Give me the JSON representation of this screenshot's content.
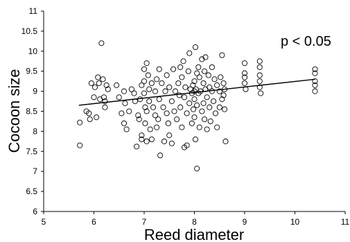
{
  "chart_data": {
    "type": "scatter",
    "title": "",
    "xlabel": "Reed diameter",
    "ylabel": "Cocoon size",
    "xlim": [
      5,
      11
    ],
    "ylim": [
      6,
      11
    ],
    "xticks": [
      5,
      6,
      7,
      8,
      9,
      10,
      11
    ],
    "yticks": [
      6,
      6.5,
      7,
      7.5,
      8,
      8.5,
      9,
      9.5,
      10,
      10.5,
      11
    ],
    "xtick_labels": [
      "5",
      "6",
      "7",
      "8",
      "9",
      "10",
      "11"
    ],
    "ytick_labels": [
      "6",
      "6.5",
      "7",
      "7.5",
      "8",
      "8.5",
      "9",
      "9.5",
      "10",
      "10.5",
      "11"
    ],
    "annotation": "p < 0.05",
    "grid": false,
    "marker": "open-circle",
    "colors": {
      "marker": "#000000",
      "line": "#000000"
    },
    "trendline": {
      "x": [
        5.7,
        10.4
      ],
      "y": [
        8.65,
        9.3
      ]
    },
    "points": [
      [
        5.72,
        8.22
      ],
      [
        5.72,
        7.65
      ],
      [
        5.85,
        8.5
      ],
      [
        5.9,
        8.45
      ],
      [
        5.92,
        8.3
      ],
      [
        5.95,
        9.2
      ],
      [
        6.0,
        8.85
      ],
      [
        6.02,
        9.1
      ],
      [
        6.05,
        8.35
      ],
      [
        6.08,
        9.35
      ],
      [
        6.1,
        9.2
      ],
      [
        6.12,
        8.8
      ],
      [
        6.15,
        10.2
      ],
      [
        6.18,
        9.3
      ],
      [
        6.2,
        8.85
      ],
      [
        6.22,
        8.6
      ],
      [
        6.25,
        9.15
      ],
      [
        6.28,
        9.05
      ],
      [
        6.22,
        8.75
      ],
      [
        6.45,
        9.15
      ],
      [
        6.5,
        8.85
      ],
      [
        6.55,
        8.45
      ],
      [
        6.6,
        8.2
      ],
      [
        6.6,
        9.0
      ],
      [
        6.62,
        8.7
      ],
      [
        6.65,
        8.05
      ],
      [
        6.7,
        8.5
      ],
      [
        6.75,
        9.05
      ],
      [
        6.8,
        8.95
      ],
      [
        6.82,
        8.75
      ],
      [
        6.88,
        8.4
      ],
      [
        6.9,
        8.3
      ],
      [
        6.95,
        7.9
      ],
      [
        6.95,
        9.15
      ],
      [
        6.92,
        8.8
      ],
      [
        7.0,
        9.55
      ],
      [
        7.0,
        9.25
      ],
      [
        7.0,
        8.95
      ],
      [
        7.02,
        8.6
      ],
      [
        7.02,
        8.2
      ],
      [
        7.05,
        9.7
      ],
      [
        7.05,
        8.5
      ],
      [
        7.08,
        9.4
      ],
      [
        7.1,
        9.05
      ],
      [
        7.1,
        8.75
      ],
      [
        7.12,
        8.05
      ],
      [
        7.15,
        9.2
      ],
      [
        7.15,
        7.8
      ],
      [
        7.18,
        8.6
      ],
      [
        6.85,
        7.62
      ],
      [
        6.95,
        7.8
      ],
      [
        7.05,
        7.75
      ],
      [
        7.22,
        8.4
      ],
      [
        7.22,
        9.0
      ],
      [
        7.25,
        9.3
      ],
      [
        7.25,
        8.1
      ],
      [
        7.28,
        8.3
      ],
      [
        7.3,
        9.55
      ],
      [
        7.3,
        8.8
      ],
      [
        7.32,
        7.4
      ],
      [
        7.35,
        9.2
      ],
      [
        7.38,
        8.6
      ],
      [
        7.4,
        7.75
      ],
      [
        7.42,
        9.0
      ],
      [
        7.45,
        8.45
      ],
      [
        7.45,
        9.4
      ],
      [
        7.48,
        8.2
      ],
      [
        7.5,
        7.9
      ],
      [
        7.5,
        9.1
      ],
      [
        7.55,
        8.75
      ],
      [
        7.55,
        7.7
      ],
      [
        7.58,
        9.55
      ],
      [
        7.6,
        8.5
      ],
      [
        7.62,
        9.0
      ],
      [
        7.65,
        8.3
      ],
      [
        7.68,
        9.2
      ],
      [
        7.7,
        8.9
      ],
      [
        7.72,
        9.6
      ],
      [
        7.72,
        8.6
      ],
      [
        7.75,
        9.35
      ],
      [
        7.75,
        8.1
      ],
      [
        7.78,
        9.75
      ],
      [
        7.8,
        8.85
      ],
      [
        7.8,
        7.6
      ],
      [
        7.82,
        9.1
      ],
      [
        7.85,
        8.45
      ],
      [
        7.85,
        7.65
      ],
      [
        7.88,
        9.5
      ],
      [
        7.9,
        8.7
      ],
      [
        7.9,
        9.95
      ],
      [
        7.92,
        9.05
      ],
      [
        7.95,
        8.95
      ],
      [
        7.95,
        8.2
      ],
      [
        7.97,
        9.15
      ],
      [
        7.98,
        8.55
      ],
      [
        8.0,
        9.0
      ],
      [
        8.0,
        8.8
      ],
      [
        8.0,
        9.25
      ],
      [
        8.0,
        8.35
      ],
      [
        8.02,
        7.8
      ],
      [
        8.02,
        10.1
      ],
      [
        8.03,
        9.05
      ],
      [
        8.05,
        9.45
      ],
      [
        8.05,
        8.65
      ],
      [
        8.05,
        7.07
      ],
      [
        8.08,
        9.6
      ],
      [
        8.08,
        8.95
      ],
      [
        8.1,
        8.1
      ],
      [
        8.1,
        9.35
      ],
      [
        8.12,
        9.0
      ],
      [
        8.15,
        9.8
      ],
      [
        8.15,
        8.5
      ],
      [
        8.18,
        9.2
      ],
      [
        8.18,
        8.7
      ],
      [
        8.2,
        9.5
      ],
      [
        8.2,
        8.3
      ],
      [
        8.22,
        9.05
      ],
      [
        8.22,
        9.85
      ],
      [
        8.25,
        8.85
      ],
      [
        8.25,
        8.05
      ],
      [
        8.28,
        9.4
      ],
      [
        8.3,
        9.1
      ],
      [
        8.3,
        8.6
      ],
      [
        8.32,
        8.25
      ],
      [
        8.35,
        9.0
      ],
      [
        8.35,
        9.6
      ],
      [
        8.38,
        8.75
      ],
      [
        8.4,
        9.3
      ],
      [
        8.42,
        8.45
      ],
      [
        8.45,
        9.15
      ],
      [
        8.45,
        8.1
      ],
      [
        8.5,
        9.0
      ],
      [
        8.5,
        8.6
      ],
      [
        8.52,
        9.35
      ],
      [
        8.55,
        8.8
      ],
      [
        8.55,
        9.9
      ],
      [
        8.58,
        9.2
      ],
      [
        8.6,
        8.55
      ],
      [
        8.62,
        7.75
      ],
      [
        8.6,
        9.05
      ],
      [
        8.58,
        8.9
      ],
      [
        9.0,
        9.7
      ],
      [
        9.0,
        9.45
      ],
      [
        9.0,
        9.35
      ],
      [
        9.0,
        9.2
      ],
      [
        9.02,
        9.05
      ],
      [
        9.3,
        9.75
      ],
      [
        9.3,
        9.6
      ],
      [
        9.3,
        9.4
      ],
      [
        9.3,
        9.25
      ],
      [
        9.3,
        9.1
      ],
      [
        9.32,
        8.95
      ],
      [
        10.4,
        9.55
      ],
      [
        10.4,
        9.45
      ],
      [
        10.4,
        9.25
      ],
      [
        10.4,
        9.15
      ],
      [
        10.4,
        9.0
      ]
    ]
  }
}
